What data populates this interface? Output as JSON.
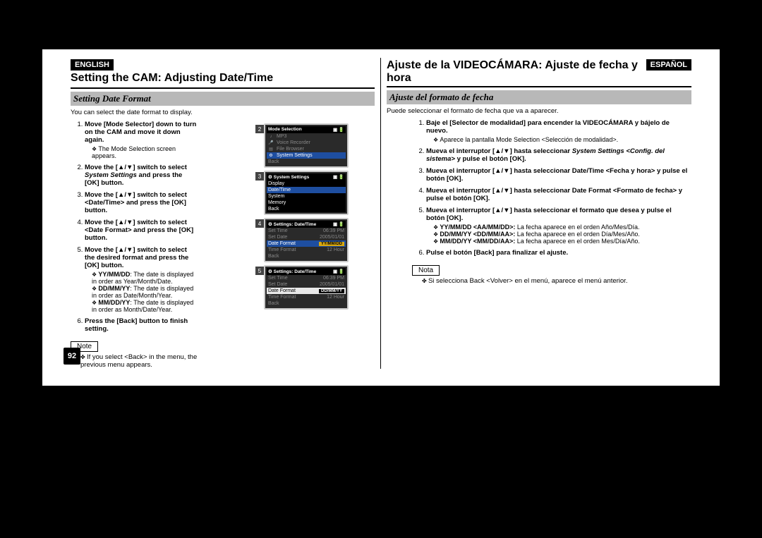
{
  "page_number": "92",
  "left": {
    "lang": "ENGLISH",
    "title": "Setting the CAM: Adjusting Date/Time",
    "section": "Setting Date Format",
    "intro": "You can select the date format to display.",
    "steps": [
      {
        "title": "Move [Mode Selector] down to turn on the CAM and move it down again.",
        "sub": [
          "The Mode Selection screen appears."
        ]
      },
      {
        "title_html": "Move the [▲/▼] switch to select <i>System Settings</i> and press the [OK] button."
      },
      {
        "title": "Move the [▲/▼] switch to select <Date/Time> and press the [OK] button."
      },
      {
        "title": "Move the [▲/▼] switch to select <Date Format> and press the [OK] button."
      },
      {
        "title": "Move the [▲/▼] switch to select the desired format and press the [OK] button.",
        "sub": [
          "YY/MM/DD: The date is displayed in order as Year/Month/Date.",
          "DD/MM/YY: The date is displayed in order as Date/Month/Year.",
          "MM/DD/YY: The date is displayed in order as Month/Date/Year."
        ],
        "sub_bold_leads": [
          "YY/MM/DD",
          "DD/MM/YY",
          "MM/DD/YY"
        ]
      },
      {
        "title": "Press the [Back] button to finish setting."
      }
    ],
    "note_label": "Note",
    "note": "If you select <Back> in the menu, the previous menu appears."
  },
  "right": {
    "lang": "ESPAÑOL",
    "title": "Ajuste de la VIDEOCÁMARA: Ajuste de fecha y hora",
    "section": "Ajuste del formato de fecha",
    "intro": "Puede seleccionar el formato de fecha que va a aparecer.",
    "steps": [
      {
        "title": "Baje el [Selector de modalidad] para encender la VIDEOCÁMARA y bájelo de nuevo.",
        "sub": [
          "Aparece la pantalla Mode Selection <Selección de modalidad>."
        ]
      },
      {
        "title_html": "Mueva el interruptor [▲/▼] hasta seleccionar <i>System Settings &lt;Config. del sistema&gt;</i> y pulse el botón [OK]."
      },
      {
        "title": "Mueva el interruptor [▲/▼] hasta seleccionar Date/Time <Fecha y hora> y pulse el botón [OK]."
      },
      {
        "title": "Mueva el interruptor [▲/▼] hasta seleccionar Date Format <Formato de fecha> y pulse el botón [OK]."
      },
      {
        "title": "Mueva el interruptor [▲/▼] hasta seleccionar el formato que desea y pulse el botón [OK].",
        "sub": [
          "YY/MM/DD <AA/MM/DD>:  La fecha aparece en el orden Año/Mes/Día.",
          "DD/MM/YY <DD/MM/AA>:  La fecha aparece en el orden Día/Mes/Año.",
          "MM/DD/YY <MM/DD/AA>:  La fecha aparece en el orden Mes/Día/Año."
        ],
        "sub_bold_leads": [
          "YY/MM/DD <AA/MM/DD>:",
          "DD/MM/YY <DD/MM/AA>:",
          "MM/DD/YY <MM/DD/AA>:"
        ]
      },
      {
        "title": "Pulse el botón [Back] para finalizar el ajuste."
      }
    ],
    "note_label": "Nota",
    "note": "Si selecciona Back <Volver> en el menú, aparece el menú anterior."
  },
  "screens": {
    "s2": {
      "title": "Mode Selection",
      "rows": [
        {
          "dim": true,
          "icon": "♪",
          "label": "MP3"
        },
        {
          "dim": true,
          "icon": "🎤",
          "label": "Voice Recorder"
        },
        {
          "dim": true,
          "icon": "▤",
          "label": "File Browser"
        },
        {
          "sel": "blue",
          "icon": "⚙",
          "label": "System Settings"
        },
        {
          "dim": true,
          "label": "Back"
        }
      ]
    },
    "s3": {
      "title": "System Settings",
      "rows": [
        {
          "sel": "black",
          "label": "Display"
        },
        {
          "sel": "blue",
          "label": "Date/Time"
        },
        {
          "sel": "black",
          "label": "System"
        },
        {
          "sel": "black",
          "label": "Memory"
        },
        {
          "sel": "black",
          "label": "Back"
        }
      ]
    },
    "s4": {
      "title": "Settings: Date/Time",
      "rows": [
        {
          "dim": true,
          "label": "Set Time",
          "val": "06:39 PM"
        },
        {
          "dim": true,
          "label": "Set Date",
          "val": "2005/01/01"
        },
        {
          "sel": "blue",
          "label": "Date Format",
          "val": "YY/MM/DD",
          "valbox": "yellow"
        },
        {
          "dim": true,
          "label": "Time Format",
          "val": "12 Hour"
        },
        {
          "dim": true,
          "label": "Back"
        }
      ]
    },
    "s5": {
      "title": "Settings: Date/Time",
      "rows": [
        {
          "dim": true,
          "label": "Set Time",
          "val": "06:39 PM"
        },
        {
          "dim": true,
          "label": "Set Date",
          "val": "2005/01/01"
        },
        {
          "white": true,
          "label": "Date Format",
          "val": "DD/MM/YY",
          "valbox": "black"
        },
        {
          "dim": true,
          "label": "Time Format",
          "val": "12 Hour"
        },
        {
          "dim": true,
          "label": "Back"
        }
      ]
    }
  },
  "colors": {
    "bg": "#000",
    "section_bar": "#b8b8b8",
    "blue_sel": "#1e4ea0",
    "val_yellow": "#d8a810"
  }
}
